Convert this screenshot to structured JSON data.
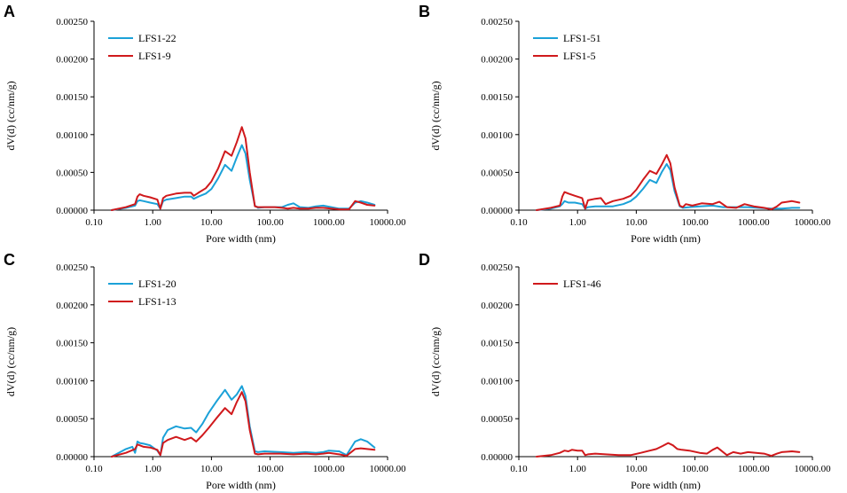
{
  "chart_data": [
    {
      "type": "line",
      "panel_label": "A",
      "xlabel": "Pore width (nm)",
      "ylabel": "dV(d) (cc/nm/g)",
      "x_scale": "log",
      "xlim": [
        0.1,
        10000
      ],
      "ylim": [
        0,
        0.0025
      ],
      "x_tick_labels": [
        "0.10",
        "1.00",
        "10.00",
        "100.00",
        "1000.00",
        "10000.00"
      ],
      "y_tick_labels": [
        "0.00000",
        "0.00050",
        "0.00100",
        "0.00150",
        "0.00200",
        "0.00250"
      ],
      "legend_position": "top-left",
      "series": [
        {
          "name": "LFS1-22",
          "color": "#1ba1d8",
          "x": [
            0.2,
            0.35,
            0.5,
            0.55,
            0.6,
            0.7,
            0.9,
            1.2,
            1.35,
            1.5,
            1.7,
            2.5,
            3.5,
            4.5,
            5.0,
            6.0,
            8.0,
            10.0,
            13.0,
            17.0,
            22.0,
            27.0,
            33.0,
            38.0,
            45.0,
            55.0,
            62.0,
            80.0,
            120.0,
            160.0,
            200.0,
            250.0,
            320.0,
            450.0,
            600.0,
            800.0,
            1100.0,
            1500.0,
            2200.0,
            2800.0,
            3500.0,
            4500.0,
            6000.0
          ],
          "y": [
            0.0,
            3e-05,
            6e-05,
            0.00012,
            0.00013,
            0.00012,
            0.0001,
            8e-05,
            2e-05,
            0.00012,
            0.00014,
            0.00016,
            0.00018,
            0.00018,
            0.00015,
            0.00018,
            0.00022,
            0.00028,
            0.00042,
            0.0006,
            0.00052,
            0.0007,
            0.00086,
            0.00075,
            0.0004,
            6e-05,
            3e-05,
            4e-05,
            4e-05,
            4e-05,
            7e-05,
            9e-05,
            4e-05,
            3e-05,
            5e-05,
            6e-05,
            4e-05,
            2e-05,
            2e-05,
            0.0001,
            0.00012,
            0.0001,
            7e-05
          ]
        },
        {
          "name": "LFS1-9",
          "color": "#d0191c",
          "x": [
            0.2,
            0.35,
            0.5,
            0.55,
            0.6,
            0.7,
            0.9,
            1.2,
            1.35,
            1.5,
            1.7,
            2.5,
            3.5,
            4.5,
            5.0,
            6.0,
            8.0,
            10.0,
            13.0,
            17.0,
            22.0,
            27.0,
            33.0,
            38.0,
            45.0,
            55.0,
            62.0,
            80.0,
            120.0,
            160.0,
            200.0,
            250.0,
            320.0,
            450.0,
            600.0,
            800.0,
            1100.0,
            1500.0,
            2200.0,
            2800.0,
            3500.0,
            4500.0,
            6000.0
          ],
          "y": [
            0.0,
            4e-05,
            8e-05,
            0.00018,
            0.00021,
            0.00019,
            0.00017,
            0.00014,
            2e-05,
            0.00016,
            0.00019,
            0.00022,
            0.00023,
            0.00023,
            0.00019,
            0.00023,
            0.00029,
            0.00038,
            0.00055,
            0.00078,
            0.00072,
            0.0009,
            0.0011,
            0.00095,
            0.0005,
            5e-05,
            4e-05,
            4e-05,
            4e-05,
            3e-05,
            2e-05,
            3e-05,
            2e-05,
            2e-05,
            3e-05,
            3e-05,
            2e-05,
            1e-05,
            1e-05,
            0.00012,
            0.0001,
            7e-05,
            6e-05
          ]
        }
      ]
    },
    {
      "type": "line",
      "panel_label": "B",
      "xlabel": "Pore width (nm)",
      "ylabel": "dV(d) (cc/nm/g)",
      "x_scale": "log",
      "xlim": [
        0.1,
        10000
      ],
      "ylim": [
        0,
        0.0025
      ],
      "x_tick_labels": [
        "0.10",
        "1.00",
        "10.00",
        "100.00",
        "1000.00",
        "10000.00"
      ],
      "y_tick_labels": [
        "0.00000",
        "0.00050",
        "0.00100",
        "0.00150",
        "0.00200",
        "0.00250"
      ],
      "legend_position": "top-left",
      "series": [
        {
          "name": "LFS1-51",
          "color": "#1ba1d8",
          "x": [
            0.2,
            0.35,
            0.5,
            0.55,
            0.6,
            0.7,
            0.9,
            1.2,
            1.35,
            1.5,
            2.0,
            3.0,
            4.0,
            6.0,
            8.0,
            10.0,
            13.0,
            17.0,
            22.0,
            27.0,
            33.0,
            38.0,
            45.0,
            55.0,
            62.0,
            80.0,
            120.0,
            200.0,
            300.0,
            500.0,
            800.0,
            1200.0,
            2000.0,
            3000.0,
            4500.0,
            6000.0
          ],
          "y": [
            0.0,
            2e-05,
            5e-05,
            8e-05,
            0.00012,
            0.0001,
            0.0001,
            8e-05,
            2e-05,
            4e-05,
            5e-05,
            5e-05,
            5e-05,
            8e-05,
            0.00012,
            0.00018,
            0.00028,
            0.0004,
            0.00036,
            0.0005,
            0.00061,
            0.00053,
            0.00025,
            5e-05,
            3e-05,
            4e-05,
            5e-05,
            6e-05,
            4e-05,
            4e-05,
            4e-05,
            3e-05,
            2e-05,
            2e-05,
            3e-05,
            3e-05
          ]
        },
        {
          "name": "LFS1-5",
          "color": "#d0191c",
          "x": [
            0.2,
            0.35,
            0.5,
            0.55,
            0.6,
            0.7,
            0.9,
            1.2,
            1.35,
            1.5,
            2.0,
            2.5,
            3.0,
            4.0,
            6.0,
            8.0,
            10.0,
            13.0,
            17.0,
            22.0,
            27.0,
            33.0,
            38.0,
            45.0,
            55.0,
            62.0,
            70.0,
            90.0,
            130.0,
            200.0,
            260.0,
            350.0,
            500.0,
            700.0,
            1000.0,
            1500.0,
            2000.0,
            2500.0,
            3000.0,
            4500.0,
            6000.0
          ],
          "y": [
            0.0,
            3e-05,
            6e-05,
            0.00018,
            0.00024,
            0.00022,
            0.00019,
            0.00016,
            2e-05,
            0.00013,
            0.00015,
            0.00016,
            8e-05,
            0.00012,
            0.00015,
            0.00019,
            0.00027,
            0.0004,
            0.00052,
            0.00048,
            0.0006,
            0.00073,
            0.00062,
            0.0003,
            6e-05,
            4e-05,
            8e-05,
            6e-05,
            9e-05,
            8e-05,
            0.00011,
            4e-05,
            3e-05,
            8e-05,
            5e-05,
            3e-05,
            1e-05,
            5e-05,
            0.0001,
            0.00012,
            0.0001
          ]
        }
      ]
    },
    {
      "type": "line",
      "panel_label": "C",
      "xlabel": "Pore width (nm)",
      "ylabel": "dV(d) (cc/nm/g)",
      "x_scale": "log",
      "xlim": [
        0.1,
        10000
      ],
      "ylim": [
        0,
        0.0025
      ],
      "x_tick_labels": [
        "0.10",
        "1.00",
        "10.00",
        "100.00",
        "1000.00",
        "10000.00"
      ],
      "y_tick_labels": [
        "0.00000",
        "0.00050",
        "0.00100",
        "0.00150",
        "0.00200",
        "0.00250"
      ],
      "legend_position": "top-left",
      "series": [
        {
          "name": "LFS1-20",
          "color": "#1ba1d8",
          "x": [
            0.2,
            0.35,
            0.45,
            0.5,
            0.55,
            0.6,
            0.7,
            0.9,
            1.2,
            1.35,
            1.5,
            1.8,
            2.5,
            3.5,
            4.5,
            5.5,
            7.0,
            9.0,
            12.0,
            17.0,
            22.0,
            27.0,
            33.0,
            38.0,
            45.0,
            55.0,
            62.0,
            80.0,
            150.0,
            250.0,
            400.0,
            600.0,
            800.0,
            1000.0,
            1500.0,
            2000.0,
            2800.0,
            3500.0,
            4500.0,
            6000.0
          ],
          "y": [
            0.0,
            0.0001,
            0.00013,
            5e-05,
            0.0002,
            0.00018,
            0.00017,
            0.00015,
            8e-05,
            2e-05,
            0.00025,
            0.00035,
            0.0004,
            0.00037,
            0.00038,
            0.00032,
            0.00043,
            0.00058,
            0.00072,
            0.00088,
            0.00075,
            0.00082,
            0.00093,
            0.0008,
            0.0004,
            7e-05,
            6e-05,
            7e-05,
            6e-05,
            5e-05,
            6e-05,
            5e-05,
            6e-05,
            8e-05,
            7e-05,
            2e-05,
            0.0002,
            0.00023,
            0.0002,
            0.00012
          ]
        },
        {
          "name": "LFS1-13",
          "color": "#d0191c",
          "x": [
            0.2,
            0.35,
            0.5,
            0.55,
            0.6,
            0.7,
            0.9,
            1.2,
            1.35,
            1.5,
            1.8,
            2.5,
            3.5,
            4.5,
            5.5,
            7.0,
            9.0,
            12.0,
            17.0,
            22.0,
            27.0,
            33.0,
            38.0,
            45.0,
            55.0,
            62.0,
            80.0,
            150.0,
            250.0,
            400.0,
            600.0,
            800.0,
            1000.0,
            1500.0,
            2000.0,
            2800.0,
            3500.0,
            4500.0,
            6000.0
          ],
          "y": [
            0.0,
            5e-05,
            0.0001,
            0.00016,
            0.00015,
            0.00013,
            0.00012,
            9e-05,
            2e-05,
            0.00018,
            0.00022,
            0.00026,
            0.00022,
            0.00025,
            0.0002,
            0.00028,
            0.00038,
            0.0005,
            0.00064,
            0.00056,
            0.00072,
            0.00085,
            0.00073,
            0.00035,
            4e-05,
            3e-05,
            4e-05,
            4e-05,
            3e-05,
            4e-05,
            3e-05,
            4e-05,
            5e-05,
            3e-05,
            1e-05,
            0.0001,
            0.00011,
            0.0001,
            9e-05
          ]
        }
      ]
    },
    {
      "type": "line",
      "panel_label": "D",
      "xlabel": "Pore width (nm)",
      "ylabel": "dV(d) (cc/nm/g)",
      "x_scale": "log",
      "xlim": [
        0.1,
        10000
      ],
      "ylim": [
        0,
        0.0025
      ],
      "x_tick_labels": [
        "0.10",
        "1.00",
        "10.00",
        "100.00",
        "1000.00",
        "10000.00"
      ],
      "y_tick_labels": [
        "0.00000",
        "0.00050",
        "0.00100",
        "0.00150",
        "0.00200",
        "0.00250"
      ],
      "legend_position": "top-left",
      "series": [
        {
          "name": "LFS1-46",
          "color": "#d0191c",
          "x": [
            0.2,
            0.35,
            0.5,
            0.6,
            0.7,
            0.8,
            1.0,
            1.2,
            1.35,
            1.5,
            2.0,
            3.0,
            5.0,
            8.0,
            12.0,
            17.0,
            22.0,
            28.0,
            35.0,
            42.0,
            50.0,
            60.0,
            80.0,
            120.0,
            160.0,
            200.0,
            240.0,
            280.0,
            350.0,
            450.0,
            600.0,
            800.0,
            1100.0,
            1500.0,
            2000.0,
            2500.0,
            3000.0,
            4500.0,
            6000.0
          ],
          "y": [
            0.0,
            2e-05,
            5e-05,
            8e-05,
            7e-05,
            9e-05,
            8e-05,
            8e-05,
            2e-05,
            3e-05,
            4e-05,
            3e-05,
            2e-05,
            2e-05,
            5e-05,
            8e-05,
            0.0001,
            0.00014,
            0.00018,
            0.00015,
            0.0001,
            9e-05,
            8e-05,
            5e-05,
            4e-05,
            9e-05,
            0.00012,
            8e-05,
            2e-05,
            6e-05,
            4e-05,
            6e-05,
            5e-05,
            4e-05,
            1e-05,
            4e-05,
            6e-05,
            7e-05,
            6e-05
          ]
        }
      ]
    }
  ]
}
